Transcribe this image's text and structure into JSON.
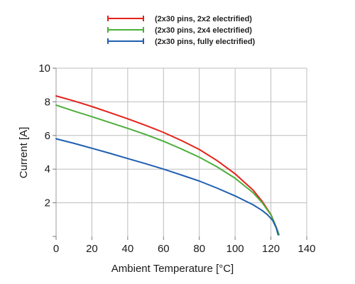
{
  "chart_data": {
    "type": "line",
    "title": "",
    "xlabel": "Ambient Temperature [°C]",
    "ylabel": "Current [A]",
    "xlim": [
      0,
      140
    ],
    "ylim": [
      0,
      10
    ],
    "x_ticks": [
      "0",
      "20",
      "40",
      "60",
      "80",
      "100",
      "120",
      "140"
    ],
    "y_ticks": [
      "2",
      "4",
      "6",
      "8",
      "10"
    ],
    "grid": true,
    "legend_position": "top-center",
    "series": [
      {
        "name": "(2x30 pins, 2x2 electrified)",
        "color": "#e32219",
        "x": [
          0,
          10,
          20,
          30,
          40,
          50,
          60,
          70,
          80,
          90,
          100,
          110,
          115,
          120,
          122,
          123.5,
          124.5
        ],
        "y": [
          8.35,
          8.05,
          7.72,
          7.36,
          6.99,
          6.6,
          6.18,
          5.7,
          5.17,
          4.5,
          3.72,
          2.75,
          2.1,
          1.3,
          0.8,
          0.4,
          0.1
        ]
      },
      {
        "name": "(2x30 pins, 2x4 electrified)",
        "color": "#4caf3a",
        "x": [
          0,
          10,
          20,
          30,
          40,
          50,
          60,
          70,
          80,
          90,
          100,
          110,
          115,
          120,
          122,
          123.5,
          124.5
        ],
        "y": [
          7.8,
          7.45,
          7.12,
          6.77,
          6.42,
          6.06,
          5.66,
          5.2,
          4.71,
          4.13,
          3.46,
          2.6,
          2.02,
          1.28,
          0.8,
          0.4,
          0.1
        ]
      },
      {
        "name": "(2x30 pins, fully electrified)",
        "color": "#1f5fb0",
        "x": [
          0,
          10,
          20,
          30,
          40,
          50,
          60,
          70,
          80,
          90,
          100,
          110,
          115,
          118,
          121,
          123,
          124
        ],
        "y": [
          5.8,
          5.53,
          5.24,
          4.94,
          4.63,
          4.32,
          4.0,
          3.65,
          3.29,
          2.87,
          2.41,
          1.88,
          1.55,
          1.3,
          0.95,
          0.5,
          0.1
        ]
      }
    ]
  }
}
